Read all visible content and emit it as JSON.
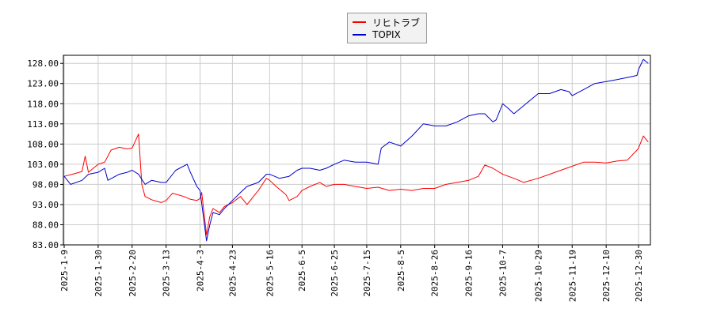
{
  "chart_data": {
    "type": "line",
    "legend": {
      "placement": "top-center"
    },
    "grid": true,
    "ylim": [
      83.0,
      130.0
    ],
    "yticks": [
      "83.00",
      "88.00",
      "93.00",
      "98.00",
      "103.00",
      "108.00",
      "113.00",
      "118.00",
      "123.00",
      "128.00"
    ],
    "xticks": [
      "2025-1-9",
      "2025-1-30",
      "2025-2-20",
      "2025-3-13",
      "2025-4-3",
      "2025-4-23",
      "2025-5-16",
      "2025-6-5",
      "2025-6-25",
      "2025-7-15",
      "2025-8-5",
      "2025-8-26",
      "2025-9-16",
      "2025-10-7",
      "2025-10-29",
      "2025-11-19",
      "2025-12-10",
      "2025-12-30"
    ],
    "series": [
      {
        "name": "リヒトラブ",
        "color": "#ff0000",
        "points": [
          [
            "2025-1-9",
            100.0
          ],
          [
            "2025-1-14",
            100.5
          ],
          [
            "2025-1-20",
            101.2
          ],
          [
            "2025-1-22",
            105.0
          ],
          [
            "2025-1-24",
            101.0
          ],
          [
            "2025-1-30",
            103.0
          ],
          [
            "2025-2-3",
            103.5
          ],
          [
            "2025-2-7",
            106.5
          ],
          [
            "2025-2-12",
            107.2
          ],
          [
            "2025-2-17",
            106.8
          ],
          [
            "2025-2-20",
            107.0
          ],
          [
            "2025-2-24",
            110.5
          ],
          [
            "2025-2-26",
            98.0
          ],
          [
            "2025-2-28",
            95.0
          ],
          [
            "2025-3-4",
            94.2
          ],
          [
            "2025-3-10",
            93.5
          ],
          [
            "2025-3-13",
            94.0
          ],
          [
            "2025-3-17",
            95.8
          ],
          [
            "2025-3-24",
            95.0
          ],
          [
            "2025-3-28",
            94.3
          ],
          [
            "2025-4-1",
            94.0
          ],
          [
            "2025-4-3",
            94.5
          ],
          [
            "2025-4-4",
            96.0
          ],
          [
            "2025-4-7",
            85.5
          ],
          [
            "2025-4-9",
            90.0
          ],
          [
            "2025-4-11",
            92.0
          ],
          [
            "2025-4-15",
            91.0
          ],
          [
            "2025-4-18",
            92.5
          ],
          [
            "2025-4-23",
            93.5
          ],
          [
            "2025-4-28",
            95.0
          ],
          [
            "2025-5-2",
            93.0
          ],
          [
            "2025-5-9",
            96.5
          ],
          [
            "2025-5-14",
            99.5
          ],
          [
            "2025-5-16",
            99.0
          ],
          [
            "2025-5-20",
            97.5
          ],
          [
            "2025-5-26",
            95.5
          ],
          [
            "2025-5-28",
            94.0
          ],
          [
            "2025-6-2",
            95.0
          ],
          [
            "2025-6-5",
            96.5
          ],
          [
            "2025-6-10",
            97.5
          ],
          [
            "2025-6-16",
            98.5
          ],
          [
            "2025-6-20",
            97.5
          ],
          [
            "2025-6-25",
            98.0
          ],
          [
            "2025-7-1",
            98.0
          ],
          [
            "2025-7-8",
            97.5
          ],
          [
            "2025-7-15",
            97.0
          ],
          [
            "2025-7-22",
            97.3
          ],
          [
            "2025-7-29",
            96.5
          ],
          [
            "2025-8-5",
            96.8
          ],
          [
            "2025-8-12",
            96.5
          ],
          [
            "2025-8-19",
            97.0
          ],
          [
            "2025-8-26",
            97.0
          ],
          [
            "2025-9-2",
            98.0
          ],
          [
            "2025-9-9",
            98.5
          ],
          [
            "2025-9-16",
            99.0
          ],
          [
            "2025-9-22",
            100.0
          ],
          [
            "2025-9-26",
            102.8
          ],
          [
            "2025-10-1",
            102.0
          ],
          [
            "2025-10-7",
            100.5
          ],
          [
            "2025-10-14",
            99.5
          ],
          [
            "2025-10-20",
            98.5
          ],
          [
            "2025-10-29",
            99.5
          ],
          [
            "2025-11-5",
            100.5
          ],
          [
            "2025-11-12",
            101.5
          ],
          [
            "2025-11-19",
            102.5
          ],
          [
            "2025-11-26",
            103.5
          ],
          [
            "2025-12-3",
            103.5
          ],
          [
            "2025-12-10",
            103.3
          ],
          [
            "2025-12-17",
            103.8
          ],
          [
            "2025-12-23",
            104.0
          ],
          [
            "2025-12-29",
            106.5
          ],
          [
            "2025-12-30",
            107.0
          ],
          [
            "2026-1-2",
            110.0
          ],
          [
            "2026-1-5",
            108.5
          ]
        ]
      },
      {
        "name": "TOPIX",
        "color": "#0000cc",
        "points": [
          [
            "2025-1-9",
            100.0
          ],
          [
            "2025-1-13",
            98.0
          ],
          [
            "2025-1-20",
            99.0
          ],
          [
            "2025-1-24",
            100.5
          ],
          [
            "2025-1-30",
            101.0
          ],
          [
            "2025-2-3",
            102.0
          ],
          [
            "2025-2-5",
            99.0
          ],
          [
            "2025-2-12",
            100.5
          ],
          [
            "2025-2-17",
            101.0
          ],
          [
            "2025-2-20",
            101.5
          ],
          [
            "2025-2-24",
            100.5
          ],
          [
            "2025-2-28",
            98.0
          ],
          [
            "2025-3-4",
            99.0
          ],
          [
            "2025-3-10",
            98.5
          ],
          [
            "2025-3-13",
            98.5
          ],
          [
            "2025-3-19",
            101.5
          ],
          [
            "2025-3-26",
            103.0
          ],
          [
            "2025-3-28",
            101.0
          ],
          [
            "2025-4-1",
            97.5
          ],
          [
            "2025-4-3",
            96.5
          ],
          [
            "2025-4-7",
            84.0
          ],
          [
            "2025-4-9",
            88.0
          ],
          [
            "2025-4-11",
            91.0
          ],
          [
            "2025-4-15",
            90.5
          ],
          [
            "2025-4-18",
            92.0
          ],
          [
            "2025-4-23",
            94.0
          ],
          [
            "2025-4-28",
            96.0
          ],
          [
            "2025-5-2",
            97.5
          ],
          [
            "2025-5-9",
            98.5
          ],
          [
            "2025-5-14",
            100.5
          ],
          [
            "2025-5-16",
            100.5
          ],
          [
            "2025-5-22",
            99.5
          ],
          [
            "2025-5-28",
            100.0
          ],
          [
            "2025-6-2",
            101.5
          ],
          [
            "2025-6-5",
            102.0
          ],
          [
            "2025-6-10",
            102.0
          ],
          [
            "2025-6-16",
            101.5
          ],
          [
            "2025-6-20",
            102.0
          ],
          [
            "2025-6-25",
            103.0
          ],
          [
            "2025-7-1",
            104.0
          ],
          [
            "2025-7-8",
            103.5
          ],
          [
            "2025-7-15",
            103.5
          ],
          [
            "2025-7-22",
            103.0
          ],
          [
            "2025-7-24",
            107.0
          ],
          [
            "2025-7-29",
            108.5
          ],
          [
            "2025-8-5",
            107.5
          ],
          [
            "2025-8-12",
            110.0
          ],
          [
            "2025-8-19",
            113.0
          ],
          [
            "2025-8-26",
            112.5
          ],
          [
            "2025-9-2",
            112.5
          ],
          [
            "2025-9-9",
            113.5
          ],
          [
            "2025-9-16",
            115.0
          ],
          [
            "2025-9-22",
            115.5
          ],
          [
            "2025-9-26",
            115.5
          ],
          [
            "2025-10-1",
            113.5
          ],
          [
            "2025-10-3",
            114.0
          ],
          [
            "2025-10-7",
            118.0
          ],
          [
            "2025-10-10",
            117.0
          ],
          [
            "2025-10-14",
            115.5
          ],
          [
            "2025-10-20",
            117.5
          ],
          [
            "2025-10-29",
            120.5
          ],
          [
            "2025-11-5",
            120.5
          ],
          [
            "2025-11-12",
            121.5
          ],
          [
            "2025-11-17",
            121.0
          ],
          [
            "2025-11-19",
            120.0
          ],
          [
            "2025-11-26",
            121.5
          ],
          [
            "2025-12-3",
            123.0
          ],
          [
            "2025-12-10",
            123.5
          ],
          [
            "2025-12-17",
            124.0
          ],
          [
            "2025-12-23",
            124.5
          ],
          [
            "2025-12-29",
            125.0
          ],
          [
            "2025-12-30",
            126.5
          ],
          [
            "2026-1-2",
            129.0
          ],
          [
            "2026-1-5",
            128.0
          ]
        ]
      }
    ]
  }
}
